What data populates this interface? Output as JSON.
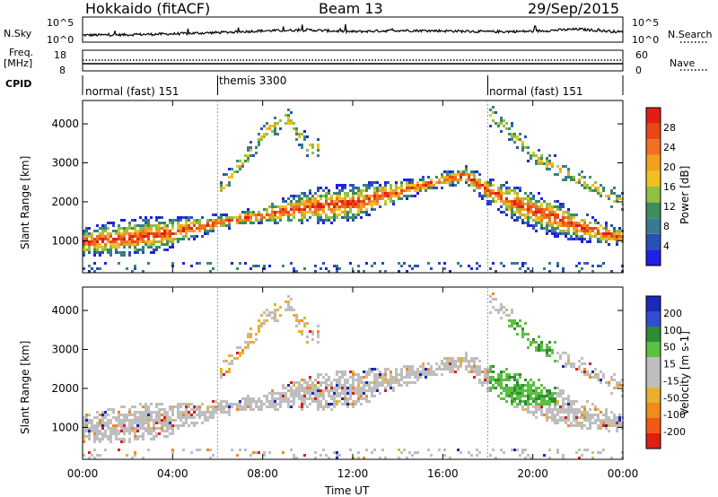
{
  "header": {
    "station": "Hokkaido (fitACF)",
    "beam": "Beam 13",
    "date": "29/Sep/2015"
  },
  "noise_panel": {
    "left_label": "N.Sky",
    "left_ticks": [
      "10^5",
      "10^0"
    ],
    "right_label": "N.Search",
    "right_ticks": [
      "10^5",
      "10^0"
    ]
  },
  "freq_panel": {
    "left_label_line1": "Freq.",
    "left_label_line2": "[MHz]",
    "left_ticks": [
      "18",
      "8"
    ],
    "right_label": "Nave",
    "right_ticks": [
      "60",
      "0"
    ]
  },
  "cpid_panel": {
    "label": "CPID",
    "segments": [
      {
        "name": "normal (fast) 151",
        "start": 0,
        "end": 6
      },
      {
        "name": "themis 3300",
        "start": 6,
        "end": 18
      },
      {
        "name": "normal (fast) 151",
        "start": 18,
        "end": 24
      }
    ]
  },
  "colors": {
    "power": [
      "#1f1fe6",
      "#2a4fb8",
      "#3a7a90",
      "#3c8f5a",
      "#8fc040",
      "#f0c020",
      "#f2a020",
      "#ef7020",
      "#e84818",
      "#e01e14"
    ],
    "velocity_pos": [
      "#1b2ab8",
      "#2f4fd0",
      "#2f8a3a",
      "#5cc040"
    ],
    "velocity_zero": "#bebebe",
    "velocity_neg": [
      "#e8b030",
      "#f08a1a",
      "#f05a14",
      "#e01e14"
    ]
  },
  "chart_data": [
    {
      "type": "line",
      "title": "N.Sky",
      "x": [
        0,
        2,
        4,
        6,
        8,
        10,
        12,
        14,
        16,
        18,
        20,
        22,
        24
      ],
      "y": [
        1.0,
        1.1,
        1.3,
        1.6,
        2.0,
        2.2,
        1.8,
        2.1,
        2.0,
        1.8,
        1.9,
        2.4,
        1.7
      ],
      "ylim": [
        0,
        5
      ],
      "scale": "log"
    },
    {
      "type": "heatmap",
      "panel": "power",
      "ylabel": "Slant Range [km]",
      "colorbar_label": "Power [dB]",
      "colorbar_ticks": [
        "4",
        "8",
        "12",
        "16",
        "20",
        "24",
        "28"
      ],
      "xlim": [
        0,
        24
      ],
      "ylim": [
        180,
        4600
      ],
      "yticks": [
        "1000",
        "2000",
        "3000",
        "4000"
      ],
      "main_band": {
        "x": [
          0,
          2,
          4,
          6,
          8,
          10,
          12,
          14,
          16,
          17,
          18,
          20,
          22,
          24
        ],
        "y": [
          1000,
          1100,
          1250,
          1500,
          1700,
          1900,
          2000,
          2300,
          2600,
          2700,
          2300,
          1800,
          1400,
          1100
        ]
      },
      "upper_band": {
        "x": [
          6,
          7,
          8,
          9,
          10,
          18,
          19,
          20,
          22,
          24
        ],
        "y": [
          2300,
          3000,
          3800,
          4200,
          3400,
          4300,
          3800,
          3200,
          2600,
          2000
        ]
      }
    },
    {
      "type": "heatmap",
      "panel": "velocity",
      "ylabel": "Slant Range [km]",
      "colorbar_label": "Velocity [m s-1]",
      "colorbar_ticks": [
        "200",
        "100",
        "50",
        "15",
        "-15",
        "-50",
        "-100",
        "-200"
      ],
      "xlim": [
        0,
        24
      ],
      "ylim": [
        180,
        4600
      ],
      "yticks": [
        "1000",
        "2000",
        "3000",
        "4000"
      ],
      "xlabel": "Time UT",
      "xticks": [
        "00:00",
        "04:00",
        "08:00",
        "12:00",
        "16:00",
        "20:00",
        "00:00"
      ]
    }
  ]
}
